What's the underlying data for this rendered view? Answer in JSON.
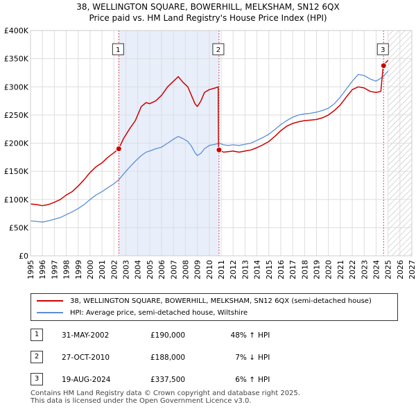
{
  "header": {
    "line1": "38, WELLINGTON SQUARE, BOWERHILL, MELKSHAM, SN12 6QX",
    "line2": "Price paid vs. HM Land Registry's House Price Index (HPI)"
  },
  "chart_data": {
    "type": "line",
    "x_range": [
      1995,
      2027
    ],
    "y_range": [
      0,
      400000
    ],
    "x_ticks": [
      1995,
      1996,
      1997,
      1998,
      1999,
      2000,
      2001,
      2002,
      2003,
      2004,
      2005,
      2006,
      2007,
      2008,
      2009,
      2010,
      2011,
      2012,
      2013,
      2014,
      2015,
      2016,
      2017,
      2018,
      2019,
      2020,
      2021,
      2022,
      2023,
      2024,
      2025,
      2026,
      2027
    ],
    "y_ticks": [
      0,
      50000,
      100000,
      150000,
      200000,
      250000,
      300000,
      350000,
      400000
    ],
    "y_tick_labels": [
      "£0",
      "£50K",
      "£100K",
      "£150K",
      "£200K",
      "£250K",
      "£300K",
      "£350K",
      "£400K"
    ],
    "shaded_periods": [
      [
        2002.41,
        2010.82
      ]
    ],
    "hatched_from": 2025.0,
    "series": [
      {
        "name": "38, WELLINGTON SQUARE, BOWERHILL, MELKSHAM, SN12 6QX (semi-detached house)",
        "color": "#cc0000",
        "points": [
          [
            1995.0,
            92000
          ],
          [
            1995.5,
            91000
          ],
          [
            1996.0,
            89000
          ],
          [
            1996.5,
            91000
          ],
          [
            1997.0,
            95000
          ],
          [
            1997.5,
            100000
          ],
          [
            1998.0,
            108000
          ],
          [
            1998.5,
            114000
          ],
          [
            1999.0,
            124000
          ],
          [
            1999.5,
            135000
          ],
          [
            2000.0,
            148000
          ],
          [
            2000.5,
            158000
          ],
          [
            2001.0,
            165000
          ],
          [
            2001.5,
            175000
          ],
          [
            2002.0,
            183000
          ],
          [
            2002.41,
            190000
          ],
          [
            2002.8,
            208000
          ],
          [
            2003.3,
            225000
          ],
          [
            2003.8,
            240000
          ],
          [
            2004.3,
            265000
          ],
          [
            2004.7,
            272000
          ],
          [
            2005.0,
            270000
          ],
          [
            2005.5,
            275000
          ],
          [
            2006.0,
            285000
          ],
          [
            2006.5,
            300000
          ],
          [
            2007.0,
            310000
          ],
          [
            2007.4,
            318000
          ],
          [
            2007.8,
            308000
          ],
          [
            2008.2,
            300000
          ],
          [
            2008.5,
            285000
          ],
          [
            2008.8,
            270000
          ],
          [
            2009.0,
            265000
          ],
          [
            2009.3,
            275000
          ],
          [
            2009.6,
            290000
          ],
          [
            2010.0,
            295000
          ],
          [
            2010.5,
            298000
          ],
          [
            2010.75,
            300000
          ],
          [
            2010.78,
            190000
          ],
          [
            2010.82,
            188000
          ],
          [
            2011.2,
            184000
          ],
          [
            2011.6,
            185000
          ],
          [
            2012.0,
            186000
          ],
          [
            2012.5,
            184000
          ],
          [
            2013.0,
            186000
          ],
          [
            2013.5,
            188000
          ],
          [
            2014.0,
            192000
          ],
          [
            2014.5,
            197000
          ],
          [
            2015.0,
            203000
          ],
          [
            2015.5,
            212000
          ],
          [
            2016.0,
            222000
          ],
          [
            2016.5,
            230000
          ],
          [
            2017.0,
            235000
          ],
          [
            2017.5,
            238000
          ],
          [
            2018.0,
            240000
          ],
          [
            2018.5,
            241000
          ],
          [
            2019.0,
            242000
          ],
          [
            2019.5,
            245000
          ],
          [
            2020.0,
            250000
          ],
          [
            2020.5,
            258000
          ],
          [
            2021.0,
            268000
          ],
          [
            2021.5,
            282000
          ],
          [
            2022.0,
            295000
          ],
          [
            2022.5,
            300000
          ],
          [
            2023.0,
            298000
          ],
          [
            2023.5,
            292000
          ],
          [
            2024.0,
            290000
          ],
          [
            2024.4,
            292000
          ],
          [
            2024.6,
            337500
          ],
          [
            2024.9,
            345000
          ],
          [
            2025.0,
            347000
          ]
        ]
      },
      {
        "name": "HPI: Average price, semi-detached house, Wiltshire",
        "color": "#5b8fd4",
        "points": [
          [
            1995.0,
            62000
          ],
          [
            1995.5,
            61000
          ],
          [
            1996.0,
            60000
          ],
          [
            1996.5,
            62000
          ],
          [
            1997.0,
            65000
          ],
          [
            1997.5,
            68000
          ],
          [
            1998.0,
            73000
          ],
          [
            1998.5,
            78000
          ],
          [
            1999.0,
            84000
          ],
          [
            1999.5,
            91000
          ],
          [
            2000.0,
            100000
          ],
          [
            2000.5,
            108000
          ],
          [
            2001.0,
            114000
          ],
          [
            2001.5,
            121000
          ],
          [
            2002.0,
            128000
          ],
          [
            2002.41,
            135000
          ],
          [
            2002.8,
            145000
          ],
          [
            2003.3,
            157000
          ],
          [
            2003.8,
            168000
          ],
          [
            2004.3,
            178000
          ],
          [
            2004.7,
            184000
          ],
          [
            2005.0,
            186000
          ],
          [
            2005.5,
            190000
          ],
          [
            2006.0,
            193000
          ],
          [
            2006.5,
            200000
          ],
          [
            2007.0,
            207000
          ],
          [
            2007.4,
            212000
          ],
          [
            2007.8,
            208000
          ],
          [
            2008.2,
            203000
          ],
          [
            2008.5,
            195000
          ],
          [
            2008.8,
            183000
          ],
          [
            2009.0,
            178000
          ],
          [
            2009.3,
            182000
          ],
          [
            2009.6,
            190000
          ],
          [
            2010.0,
            196000
          ],
          [
            2010.5,
            198000
          ],
          [
            2010.82,
            200000
          ],
          [
            2011.2,
            197000
          ],
          [
            2011.6,
            196000
          ],
          [
            2012.0,
            197000
          ],
          [
            2012.5,
            196000
          ],
          [
            2013.0,
            198000
          ],
          [
            2013.5,
            200000
          ],
          [
            2014.0,
            205000
          ],
          [
            2014.5,
            210000
          ],
          [
            2015.0,
            216000
          ],
          [
            2015.5,
            224000
          ],
          [
            2016.0,
            233000
          ],
          [
            2016.5,
            240000
          ],
          [
            2017.0,
            246000
          ],
          [
            2017.5,
            250000
          ],
          [
            2018.0,
            252000
          ],
          [
            2018.5,
            253000
          ],
          [
            2019.0,
            255000
          ],
          [
            2019.5,
            258000
          ],
          [
            2020.0,
            262000
          ],
          [
            2020.5,
            270000
          ],
          [
            2021.0,
            282000
          ],
          [
            2021.5,
            296000
          ],
          [
            2022.0,
            310000
          ],
          [
            2022.5,
            322000
          ],
          [
            2023.0,
            320000
          ],
          [
            2023.5,
            314000
          ],
          [
            2024.0,
            310000
          ],
          [
            2024.6,
            318000
          ],
          [
            2025.0,
            328000
          ]
        ]
      }
    ],
    "sales": [
      {
        "id": "1",
        "x": 2002.41,
        "y": 190000
      },
      {
        "id": "2",
        "x": 2010.82,
        "y": 188000
      },
      {
        "id": "3",
        "x": 2024.63,
        "y": 337500
      }
    ]
  },
  "legend": {
    "property": "38, WELLINGTON SQUARE, BOWERHILL, MELKSHAM, SN12 6QX (semi-detached house)",
    "hpi": "HPI: Average price, semi-detached house, Wiltshire"
  },
  "transactions": [
    {
      "num": "1",
      "date": "31-MAY-2002",
      "price": "£190,000",
      "hpi": "48% ↑",
      "suffix": "HPI"
    },
    {
      "num": "2",
      "date": "27-OCT-2010",
      "price": "£188,000",
      "hpi": "7% ↓",
      "suffix": "HPI"
    },
    {
      "num": "3",
      "date": "19-AUG-2024",
      "price": "£337,500",
      "hpi": "6% ↑",
      "suffix": "HPI"
    }
  ],
  "footer": {
    "line1": "Contains HM Land Registry data © Crown copyright and database right 2025.",
    "line2": "This data is licensed under the Open Government Licence v3.0."
  }
}
